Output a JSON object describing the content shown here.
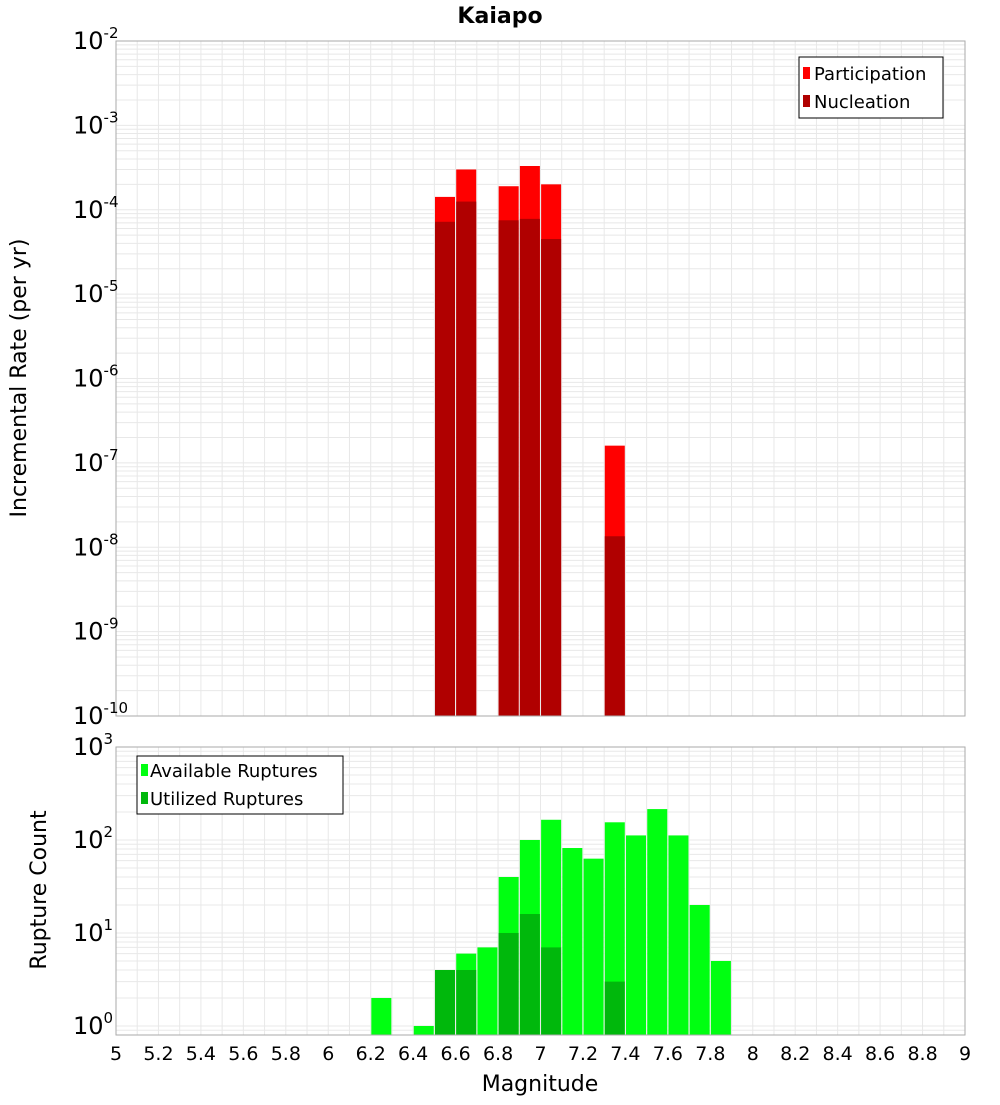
{
  "colors": {
    "participation": "#ff0000",
    "nucleation": "#b00000",
    "available": "#00ff11",
    "utilized": "#00b80c",
    "grid": "#e8e8e8",
    "frame": "#aaaaaa"
  },
  "chart_data": [
    {
      "type": "bar",
      "title": "Kaiapo",
      "ylabel": "Incremental Rate (per yr)",
      "y_scale": "log",
      "ylim": [
        1e-10,
        0.01
      ],
      "y_tick_labels": [
        {
          "base": "10",
          "exp": "-2"
        },
        {
          "base": "10",
          "exp": "-3"
        },
        {
          "base": "10",
          "exp": "-4"
        },
        {
          "base": "10",
          "exp": "-5"
        },
        {
          "base": "10",
          "exp": "-6"
        },
        {
          "base": "10",
          "exp": "-7"
        },
        {
          "base": "10",
          "exp": "-8"
        },
        {
          "base": "10",
          "exp": "-9"
        },
        {
          "base": "10",
          "exp": "-10"
        }
      ],
      "xlim": [
        5,
        9
      ],
      "grid": true,
      "legend_position": "top-right",
      "series": [
        {
          "name": "Participation",
          "x": [
            6.55,
            6.65,
            6.85,
            6.95,
            7.05,
            7.35
          ],
          "values": [
            0.000142,
            0.0003,
            0.00019,
            0.00033,
            0.0002,
            1.6e-07
          ]
        },
        {
          "name": "Nucleation",
          "x": [
            6.55,
            6.65,
            6.85,
            6.95,
            7.05,
            7.35
          ],
          "values": [
            7.2e-05,
            0.000125,
            7.5e-05,
            7.8e-05,
            4.5e-05,
            1.35e-08
          ]
        }
      ]
    },
    {
      "type": "bar",
      "xlabel": "Magnitude",
      "ylabel": "Rupture Count",
      "y_scale": "log",
      "ylim": [
        0.8,
        1000
      ],
      "y_tick_labels": [
        {
          "value": 1000,
          "base": "10",
          "exp": "3"
        },
        {
          "value": 100,
          "base": "10",
          "exp": "2"
        },
        {
          "value": 10,
          "base": "10",
          "exp": "1"
        },
        {
          "value": 1,
          "base": "10",
          "exp": "0"
        }
      ],
      "xlim": [
        5,
        9
      ],
      "x_ticks": [
        "5",
        "5.2",
        "5.4",
        "5.6",
        "5.8",
        "6",
        "6.2",
        "6.4",
        "6.6",
        "6.8",
        "7",
        "7.2",
        "7.4",
        "7.6",
        "7.8",
        "8",
        "8.2",
        "8.4",
        "8.6",
        "8.8",
        "9"
      ],
      "grid": true,
      "legend_position": "top-left",
      "series": [
        {
          "name": "Available Ruptures",
          "x": [
            6.25,
            6.45,
            6.55,
            6.65,
            6.75,
            6.85,
            6.95,
            7.05,
            7.15,
            7.25,
            7.35,
            7.45,
            7.55,
            7.65,
            7.75,
            7.85
          ],
          "values": [
            2,
            1,
            4,
            6,
            7,
            40,
            100,
            165,
            82,
            63,
            155,
            112,
            215,
            112,
            20,
            5
          ]
        },
        {
          "name": "Utilized Ruptures",
          "x": [
            6.55,
            6.65,
            6.85,
            6.95,
            7.05,
            7.35
          ],
          "values": [
            4,
            4,
            10,
            16,
            7,
            3
          ]
        }
      ]
    }
  ]
}
